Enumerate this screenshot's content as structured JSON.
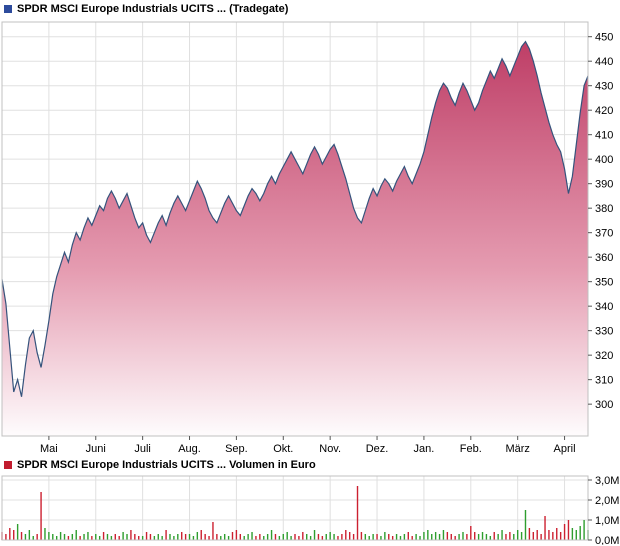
{
  "header": {
    "title": "SPDR MSCI Europe Industrials UCITS ... (Tradegate)",
    "marker_color": "#2d4b9c"
  },
  "volume_header": {
    "title": "SPDR MSCI Europe Industrials UCITS ... Volumen in Euro",
    "marker_color": "#c11b2e"
  },
  "colors": {
    "grid": "#e0e0e0",
    "border": "#c0c0c0",
    "tick": "#555555",
    "axis_text": "#000000",
    "background": "#ffffff"
  },
  "chart_data": [
    {
      "type": "area",
      "title": "SPDR MSCI Europe Industrials UCITS ... (Tradegate)",
      "legend_position": "top-left",
      "grid": true,
      "y_axis_side": "right",
      "x_tick_labels": [
        "Mai",
        "Juni",
        "Juli",
        "Aug.",
        "Sep.",
        "Okt.",
        "Nov.",
        "Dez.",
        "Jan.",
        "Feb.",
        "März",
        "April"
      ],
      "tick_indices": [
        12,
        24,
        36,
        48,
        60,
        72,
        84,
        96,
        108,
        120,
        132,
        144
      ],
      "y_ticks": [
        450,
        440,
        430,
        420,
        410,
        400,
        390,
        380,
        370,
        360,
        350,
        340,
        330,
        320,
        310,
        300
      ],
      "ylim": [
        287,
        456
      ],
      "line_color": "#35537c",
      "fill_top": "#bb3660",
      "fill_mid": "#e59cb1",
      "fill_bottom": "#fefcfd",
      "values": [
        351,
        341,
        323,
        305,
        310,
        303,
        316,
        327,
        330,
        321,
        315,
        324,
        334,
        345,
        352,
        357,
        362,
        358,
        365,
        370,
        367,
        372,
        376,
        373,
        377,
        381,
        379,
        384,
        387,
        384,
        380,
        383,
        386,
        381,
        376,
        372,
        374,
        369,
        366,
        370,
        374,
        377,
        373,
        378,
        382,
        385,
        382,
        379,
        383,
        387,
        391,
        388,
        384,
        379,
        376,
        374,
        378,
        382,
        385,
        382,
        379,
        377,
        381,
        385,
        388,
        386,
        383,
        386,
        390,
        393,
        390,
        394,
        397,
        400,
        403,
        400,
        397,
        394,
        398,
        402,
        405,
        402,
        398,
        401,
        404,
        406,
        402,
        397,
        392,
        386,
        380,
        376,
        374,
        379,
        384,
        388,
        385,
        389,
        392,
        390,
        387,
        391,
        394,
        397,
        393,
        390,
        394,
        398,
        403,
        410,
        417,
        423,
        428,
        431,
        429,
        425,
        422,
        427,
        431,
        428,
        424,
        420,
        423,
        428,
        432,
        436,
        433,
        437,
        441,
        438,
        434,
        438,
        442,
        446,
        448,
        445,
        440,
        434,
        427,
        421,
        415,
        410,
        406,
        403,
        396,
        386,
        393,
        406,
        419,
        430,
        434
      ]
    },
    {
      "type": "bar",
      "title": "SPDR MSCI Europe Industrials UCITS ... Volumen in Euro",
      "ylabel": "Volumen in Euro",
      "grid": true,
      "y_axis_side": "right",
      "y_ticks": [
        3,
        2,
        1,
        0
      ],
      "y_tick_labels": [
        "3,0M",
        "2,0M",
        "1,0M",
        "0,0M"
      ],
      "ylim": [
        0,
        3.2
      ],
      "up_color": "#2e9e2e",
      "down_color": "#cc2030",
      "values": [
        0.4,
        0.3,
        0.6,
        0.5,
        0.8,
        0.4,
        0.3,
        0.5,
        0.2,
        0.3,
        2.4,
        0.6,
        0.4,
        0.3,
        0.2,
        0.4,
        0.3,
        0.2,
        0.3,
        0.5,
        0.2,
        0.3,
        0.4,
        0.2,
        0.3,
        0.2,
        0.4,
        0.3,
        0.2,
        0.3,
        0.2,
        0.4,
        0.3,
        0.5,
        0.3,
        0.2,
        0.2,
        0.4,
        0.3,
        0.2,
        0.3,
        0.2,
        0.5,
        0.3,
        0.2,
        0.3,
        0.4,
        0.3,
        0.3,
        0.2,
        0.4,
        0.5,
        0.3,
        0.2,
        0.9,
        0.3,
        0.2,
        0.3,
        0.2,
        0.4,
        0.5,
        0.3,
        0.2,
        0.3,
        0.4,
        0.2,
        0.3,
        0.2,
        0.3,
        0.5,
        0.3,
        0.2,
        0.3,
        0.4,
        0.2,
        0.3,
        0.2,
        0.4,
        0.3,
        0.2,
        0.5,
        0.3,
        0.2,
        0.3,
        0.4,
        0.3,
        0.2,
        0.3,
        0.5,
        0.4,
        0.3,
        2.7,
        0.4,
        0.3,
        0.2,
        0.3,
        0.3,
        0.2,
        0.4,
        0.3,
        0.2,
        0.3,
        0.2,
        0.3,
        0.4,
        0.2,
        0.3,
        0.2,
        0.4,
        0.5,
        0.3,
        0.4,
        0.3,
        0.5,
        0.4,
        0.3,
        0.2,
        0.3,
        0.4,
        0.3,
        0.7,
        0.4,
        0.3,
        0.4,
        0.3,
        0.2,
        0.4,
        0.3,
        0.5,
        0.3,
        0.4,
        0.3,
        0.5,
        0.4,
        1.5,
        0.6,
        0.4,
        0.5,
        0.3,
        1.2,
        0.5,
        0.4,
        0.6,
        0.4,
        0.8,
        1.0,
        0.6,
        0.5,
        0.7,
        1.0,
        0.5
      ]
    }
  ]
}
